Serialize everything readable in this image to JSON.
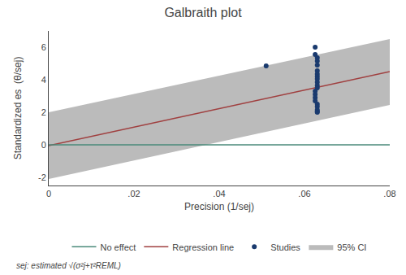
{
  "chart_data": {
    "type": "scatter",
    "title": "Galbraith plot",
    "xlabel": "Precision (1/sej)",
    "ylabel": "Standardized es  (θ/sej)",
    "xlim": [
      0,
      0.08
    ],
    "ylim": [
      -2.5,
      7
    ],
    "xticks": [
      0,
      {
        "value": 0.02,
        "label": ".02"
      },
      {
        "value": 0.04,
        "label": ".04"
      },
      {
        "value": 0.06,
        "label": ".06"
      },
      {
        "value": 0.08,
        "label": ".08"
      }
    ],
    "yticks": [
      -2,
      0,
      2,
      4,
      6
    ],
    "grid": false,
    "legend": "bottom",
    "footnote": "sej: estimated √(σ²j+τ²REML)",
    "series": [
      {
        "name": "95% CI",
        "type": "area",
        "color": "#bbbbbb",
        "x": [
          0,
          0.08
        ],
        "lower": [
          -2.1,
          2.45
        ],
        "upper": [
          2.0,
          6.5
        ]
      },
      {
        "name": "Studies",
        "type": "scatter",
        "color": "#1a3a6e",
        "marker": "circle",
        "x": [
          0.051,
          0.0625,
          0.0625,
          0.063,
          0.063,
          0.063,
          0.063,
          0.063,
          0.063,
          0.063,
          0.063,
          0.063,
          0.063,
          0.0625,
          0.0625,
          0.0625,
          0.0625,
          0.063,
          0.063,
          0.063,
          0.063,
          0.063
        ],
        "values": [
          4.85,
          6.0,
          5.55,
          5.35,
          5.15,
          4.9,
          4.55,
          4.35,
          4.2,
          4.05,
          3.85,
          3.65,
          3.5,
          3.3,
          3.1,
          2.9,
          2.7,
          2.5,
          2.35,
          2.15,
          2.05,
          2.0
        ]
      },
      {
        "name": "Regression line",
        "type": "line",
        "color": "#a04040",
        "line_style": "solid",
        "x": [
          0,
          0.08
        ],
        "values": [
          -0.05,
          4.5
        ]
      },
      {
        "name": "No effect",
        "type": "line",
        "color": "#4a8a7a",
        "line_style": "solid",
        "x": [
          0,
          0.08
        ],
        "values": [
          0,
          0
        ]
      }
    ]
  }
}
